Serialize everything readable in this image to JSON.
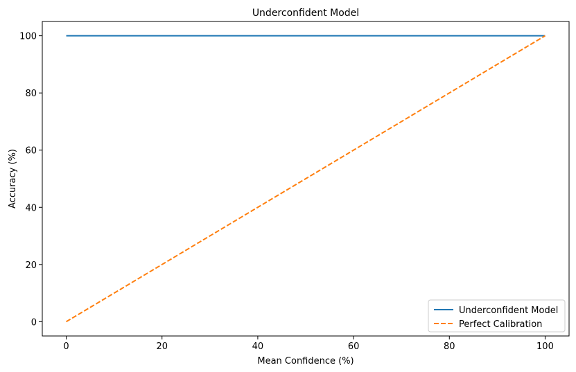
{
  "chart_data": {
    "type": "line",
    "title": "Underconfident Model",
    "xlabel": "Mean Confidence (%)",
    "ylabel": "Accuracy (%)",
    "xlim": [
      -5,
      105
    ],
    "ylim": [
      -5,
      105
    ],
    "xticks": [
      0,
      20,
      40,
      60,
      80,
      100
    ],
    "yticks": [
      0,
      20,
      40,
      60,
      80,
      100
    ],
    "grid": false,
    "legend_position": "lower right",
    "series": [
      {
        "name": "Underconfident Model",
        "x": [
          0,
          100
        ],
        "y": [
          100,
          100
        ],
        "color": "#1f77b4",
        "style": "solid"
      },
      {
        "name": "Perfect Calibration",
        "x": [
          0,
          100
        ],
        "y": [
          0,
          100
        ],
        "color": "#ff7f0e",
        "style": "dashed"
      }
    ]
  }
}
